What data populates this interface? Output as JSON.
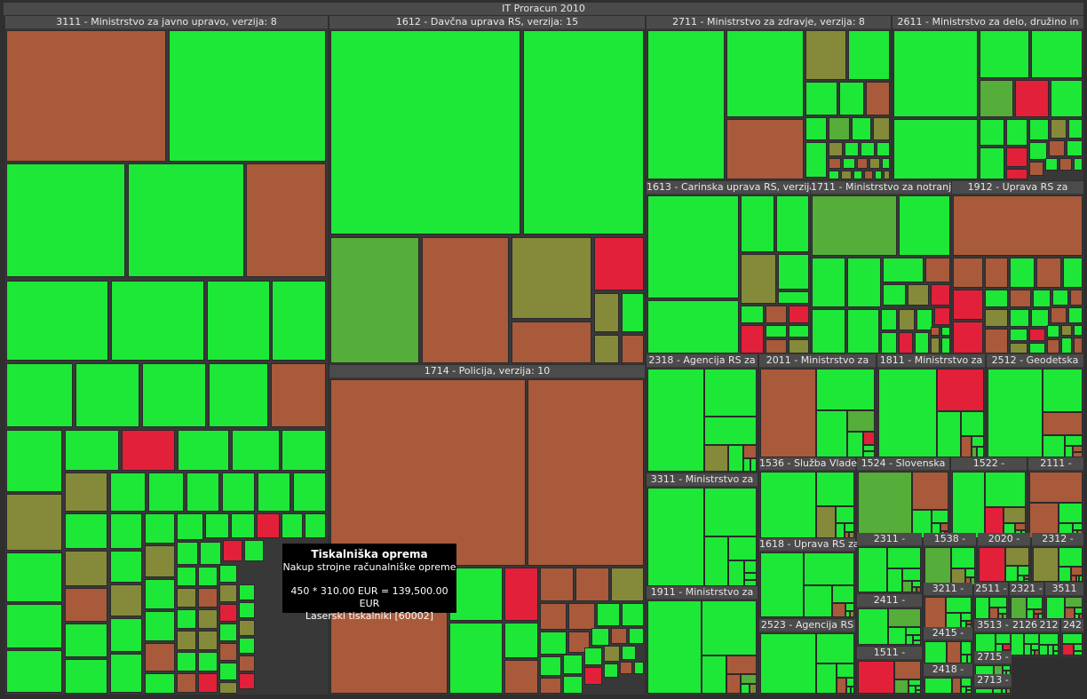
{
  "colors": {
    "green": "#1de837",
    "brown": "#a95a3b",
    "olive": "#858a3a",
    "mid": "#55ad3a",
    "red": "#e3203a",
    "bg": "#383838",
    "header": "#4b4b4b"
  },
  "chart_data": {
    "type": "treemap",
    "title": "IT Proracun 2010",
    "groups": [
      {
        "label": "3111 - Ministrstvo za javno upravo, verzija: 8"
      },
      {
        "label": "1612 - Davčna uprava RS, verzija: 15"
      },
      {
        "label": "1714 - Policija, verzija: 10"
      },
      {
        "label": "2711 - Ministrstvo za zdravje, verzija: 8"
      },
      {
        "label": "2611 - Ministrstvo za delo, družino in"
      },
      {
        "label": "1613 - Carinska uprava RS, verzija:"
      },
      {
        "label": "1711 - Ministrstvo za notranje"
      },
      {
        "label": "1912 - Uprava RS za"
      },
      {
        "label": "2318 - Agencija RS za"
      },
      {
        "label": "2011 - Ministrstvo za"
      },
      {
        "label": "1811 - Ministrstvo za"
      },
      {
        "label": "2512 - Geodetska"
      },
      {
        "label": "1536 - Služba Vlade"
      },
      {
        "label": "1524 - Slovenska"
      },
      {
        "label": "1522 -"
      },
      {
        "label": "2111 -"
      },
      {
        "label": "3311 - Ministrstvo za"
      },
      {
        "label": "1618 - Uprava RS za"
      },
      {
        "label": "2311 -"
      },
      {
        "label": "1538 -"
      },
      {
        "label": "2020 -"
      },
      {
        "label": "2312 -"
      },
      {
        "label": "1911 - Ministrstvo za"
      },
      {
        "label": "2411 -"
      },
      {
        "label": "3211 -"
      },
      {
        "label": "2511 -"
      },
      {
        "label": "2321 -"
      },
      {
        "label": "3511"
      },
      {
        "label": "2523 - Agencija RS"
      },
      {
        "label": "2415 -"
      },
      {
        "label": "3513 -"
      },
      {
        "label": "2126"
      },
      {
        "label": "212"
      },
      {
        "label": "242"
      },
      {
        "label": "1511 -"
      },
      {
        "label": "2418 -"
      },
      {
        "label": "2715 -"
      },
      {
        "label": "2713 -"
      }
    ]
  },
  "tooltip": {
    "title": "Tiskalniška oprema",
    "subtitle": "Nakup strojne računalniške opreme",
    "formula": "450 * 310.00 EUR = 139,500.00 EUR",
    "item": "Laserski tiskalniki [60002]"
  }
}
